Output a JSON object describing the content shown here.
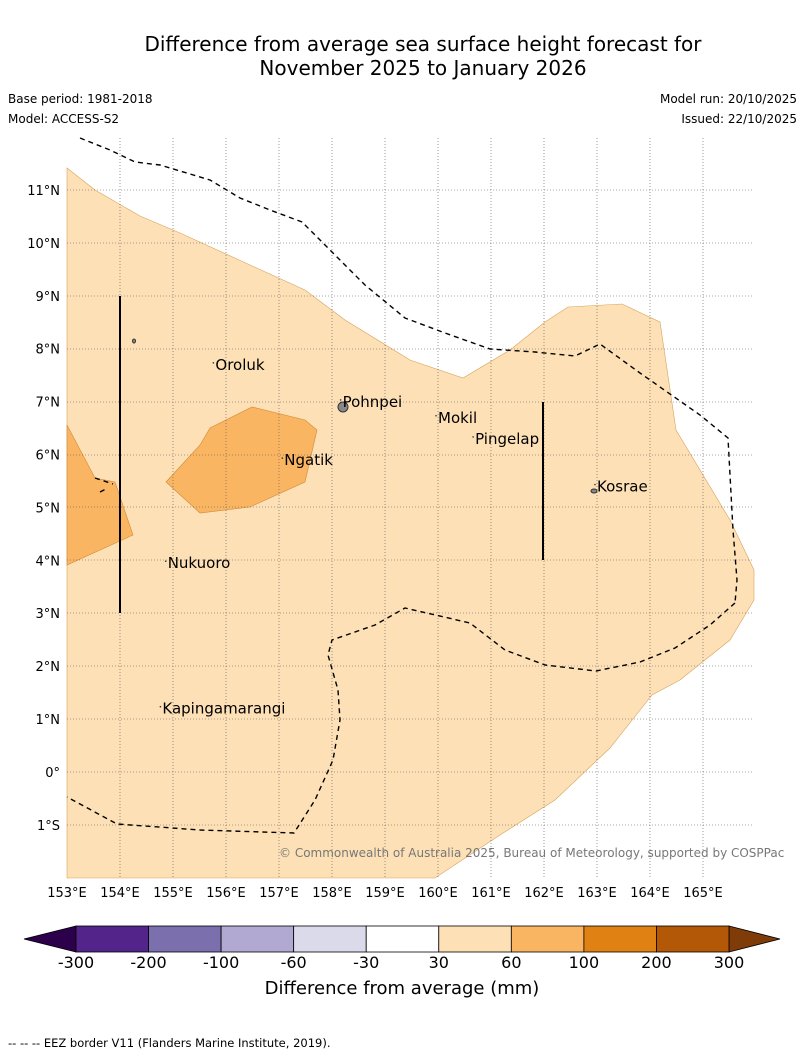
{
  "title_line1": "Difference from average sea surface height forecast for",
  "title_line2": "November 2025 to January 2026",
  "base_period": "Base period: 1981-2018",
  "model": "Model: ACCESS-S2",
  "model_run": "Model run: 20/10/2025",
  "issued": "Issued: 22/10/2025",
  "copyright": "© Commonwealth of Australia 2025, Bureau of Meteorology, supported by COSPPac",
  "lon_labels": [
    "153°E",
    "154°E",
    "155°E",
    "156°E",
    "157°E",
    "158°E",
    "159°E",
    "160°E",
    "161°E",
    "162°E",
    "163°E",
    "164°E",
    "165°E"
  ],
  "lat_labels": [
    "11°N",
    "10°N",
    "9°N",
    "8°N",
    "7°N",
    "6°N",
    "5°N",
    "4°N",
    "3°N",
    "2°N",
    "1°N",
    "0°",
    "1°S"
  ],
  "places": [
    {
      "name": "Oroluk",
      "lon": 155.8,
      "lat": 7.6
    },
    {
      "name": "Pohnpei",
      "lon": 158.2,
      "lat": 6.9
    },
    {
      "name": "Mokil",
      "lon": 160.0,
      "lat": 6.6
    },
    {
      "name": "Pingelap",
      "lon": 160.7,
      "lat": 6.2
    },
    {
      "name": "Ngatik",
      "lon": 157.1,
      "lat": 5.8
    },
    {
      "name": "Kosrae",
      "lon": 163.0,
      "lat": 5.3
    },
    {
      "name": "Nukuoro",
      "lon": 154.9,
      "lat": 3.85
    },
    {
      "name": "Kapingamarangi",
      "lon": 154.8,
      "lat": 1.1
    }
  ],
  "colorbar": {
    "ticks": [
      "-300",
      "-200",
      "-100",
      "-60",
      "-30",
      "30",
      "60",
      "100",
      "200",
      "300"
    ],
    "colors": [
      "#532489",
      "#7c6fad",
      "#b1a9d2",
      "#dadaeb",
      "#ffffff",
      "#fde0b6",
      "#fab562",
      "#e08213",
      "#b35807"
    ],
    "under_color": "#2d004b",
    "over_color": "#7f3b08",
    "label": "Difference from average (mm)"
  },
  "legend_note": "--  --  -- EEZ border V11 (Flanders Marine Institute, 2019)."
}
